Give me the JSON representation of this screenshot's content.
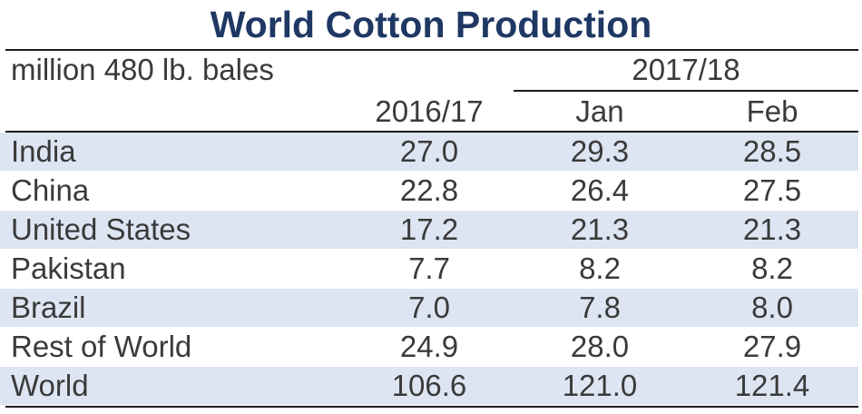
{
  "chart_data": {
    "type": "table",
    "title": "World Cotton Production",
    "unit_label": "million 480 lb. bales",
    "group_header": "2017/18",
    "columns": [
      "2016/17",
      "Jan",
      "Feb"
    ],
    "rows": [
      {
        "label": "India",
        "values": [
          "27.0",
          "29.3",
          "28.5"
        ]
      },
      {
        "label": "China",
        "values": [
          "22.8",
          "26.4",
          "27.5"
        ]
      },
      {
        "label": "United States",
        "values": [
          "17.2",
          "21.3",
          "21.3"
        ]
      },
      {
        "label": "Pakistan",
        "values": [
          "7.7",
          "8.2",
          "8.2"
        ]
      },
      {
        "label": "Brazil",
        "values": [
          "7.0",
          "7.8",
          "8.0"
        ]
      },
      {
        "label": "Rest of World",
        "values": [
          "24.9",
          "28.0",
          "27.9"
        ]
      },
      {
        "label": "World",
        "values": [
          "106.6",
          "121.0",
          "121.4"
        ]
      }
    ],
    "colors": {
      "title": "#1f3864",
      "text": "#3a3a3a",
      "row_shade": "#dde5f3"
    }
  }
}
